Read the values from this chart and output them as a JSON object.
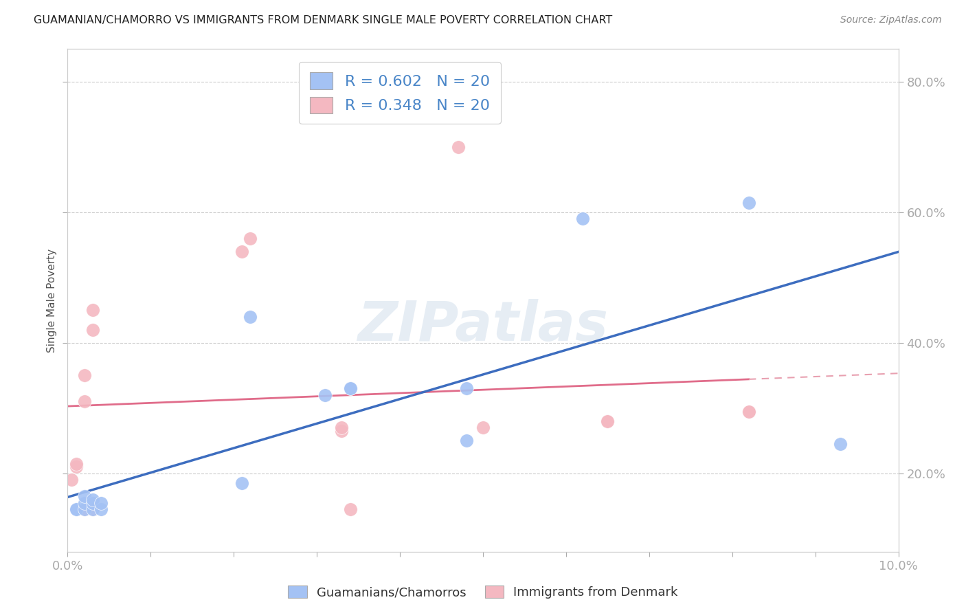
{
  "title": "GUAMANIAN/CHAMORRO VS IMMIGRANTS FROM DENMARK SINGLE MALE POVERTY CORRELATION CHART",
  "source": "Source: ZipAtlas.com",
  "ylabel": "Single Male Poverty",
  "xlim": [
    0.0,
    0.1
  ],
  "ylim": [
    0.08,
    0.85
  ],
  "x_ticks": [
    0.0,
    0.01,
    0.02,
    0.03,
    0.04,
    0.05,
    0.06,
    0.07,
    0.08,
    0.09,
    0.1
  ],
  "y_ticks": [
    0.2,
    0.4,
    0.6,
    0.8
  ],
  "x_tick_labels": [
    "0.0%",
    "",
    "",
    "",
    "",
    "",
    "",
    "",
    "",
    "",
    "10.0%"
  ],
  "y_tick_labels": [
    "20.0%",
    "40.0%",
    "60.0%",
    "80.0%"
  ],
  "blue_color": "#a4c2f4",
  "pink_color": "#f4b8c1",
  "blue_line_color": "#3d6dbf",
  "pink_line_color": "#e06c8a",
  "pink_dash_color": "#e8a0b0",
  "legend_blue_r": "R = 0.602",
  "legend_blue_n": "N = 20",
  "legend_pink_r": "R = 0.348",
  "legend_pink_n": "N = 20",
  "watermark": "ZIPatlas",
  "blue_x": [
    0.001,
    0.001,
    0.002,
    0.002,
    0.002,
    0.003,
    0.003,
    0.003,
    0.004,
    0.004,
    0.021,
    0.022,
    0.031,
    0.034,
    0.034,
    0.048,
    0.048,
    0.062,
    0.082,
    0.093
  ],
  "blue_y": [
    0.145,
    0.145,
    0.145,
    0.155,
    0.165,
    0.145,
    0.155,
    0.16,
    0.145,
    0.155,
    0.185,
    0.44,
    0.32,
    0.33,
    0.33,
    0.25,
    0.33,
    0.59,
    0.615,
    0.245
  ],
  "pink_x": [
    0.0005,
    0.001,
    0.001,
    0.002,
    0.002,
    0.002,
    0.003,
    0.003,
    0.003,
    0.021,
    0.022,
    0.033,
    0.033,
    0.034,
    0.047,
    0.05,
    0.065,
    0.065,
    0.082,
    0.082
  ],
  "pink_y": [
    0.19,
    0.21,
    0.215,
    0.35,
    0.31,
    0.145,
    0.145,
    0.42,
    0.45,
    0.54,
    0.56,
    0.265,
    0.27,
    0.145,
    0.7,
    0.27,
    0.28,
    0.28,
    0.295,
    0.295
  ],
  "background_color": "#ffffff",
  "grid_color": "#cccccc"
}
